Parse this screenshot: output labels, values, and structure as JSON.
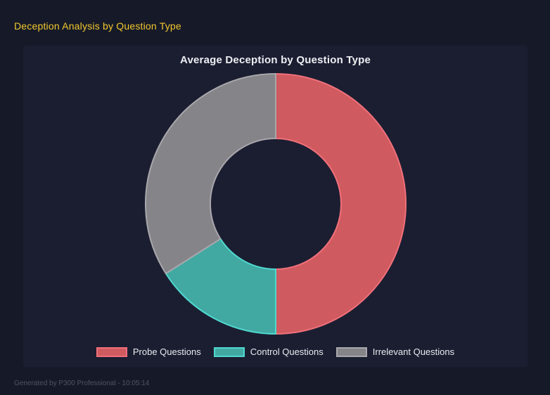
{
  "header": {
    "title": "Deception Analysis by Question Type",
    "accent_color": "#f2c72e"
  },
  "chart_data": {
    "type": "pie",
    "donut": true,
    "cutout_percent": 50,
    "rotation": "clockwise_from_top",
    "title": "Average Deception by Question Type",
    "labels": [
      "Probe Questions",
      "Control Questions",
      "Irrelevant Questions"
    ],
    "values": [
      50,
      16,
      34
    ],
    "values_are": "percent_of_circle",
    "colors": [
      "#cf5a60",
      "#42a8a2",
      "#858489"
    ],
    "border_colors": [
      "#f1707a",
      "#4fd8cf",
      "#a8a7ab"
    ],
    "legend_position": "bottom",
    "background_panel_color": "#1b1e31",
    "page_background_color": "#161a28"
  },
  "footer": {
    "text": "Generated by P300 Professional - 10:05:14"
  }
}
